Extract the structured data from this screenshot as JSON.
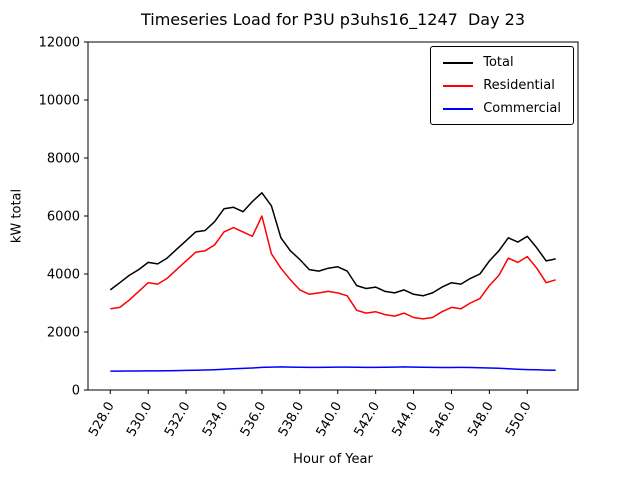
{
  "chart_data": {
    "type": "line",
    "title": "Timeseries Load for P3U p3uhs16_1247  Day 23",
    "xlabel": "Hour of Year",
    "ylabel": "kW total",
    "ylim": [
      0,
      12000
    ],
    "yticks": [
      0,
      2000,
      4000,
      6000,
      8000,
      10000,
      12000
    ],
    "xticks": [
      528,
      530,
      532,
      534,
      536,
      538,
      540,
      542,
      544,
      546,
      548,
      550
    ],
    "xtick_labels": [
      "528.0",
      "530.0",
      "532.0",
      "534.0",
      "536.0",
      "538.0",
      "540.0",
      "542.0",
      "544.0",
      "546.0",
      "548.0",
      "550.0"
    ],
    "grid": false,
    "legend_position": "upper right",
    "x": [
      528.0,
      528.5,
      529.0,
      529.5,
      530.0,
      530.5,
      531.0,
      531.5,
      532.0,
      532.5,
      533.0,
      533.5,
      534.0,
      534.5,
      535.0,
      535.5,
      536.0,
      536.5,
      537.0,
      537.5,
      538.0,
      538.5,
      539.0,
      539.5,
      540.0,
      540.5,
      541.0,
      541.5,
      542.0,
      542.5,
      543.0,
      543.5,
      544.0,
      544.5,
      545.0,
      545.5,
      546.0,
      546.5,
      547.0,
      547.5,
      548.0,
      548.5,
      549.0,
      549.5,
      550.0,
      550.5,
      551.0,
      551.5
    ],
    "series": [
      {
        "name": "Total",
        "color": "#000000",
        "values": [
          3450,
          3700,
          3950,
          4150,
          4400,
          4350,
          4550,
          4850,
          5150,
          5450,
          5500,
          5800,
          6250,
          6300,
          6150,
          6500,
          6800,
          6350,
          5250,
          4800,
          4500,
          4150,
          4100,
          4200,
          4250,
          4100,
          3600,
          3500,
          3550,
          3400,
          3350,
          3450,
          3300,
          3250,
          3350,
          3550,
          3700,
          3650,
          3850,
          4000,
          4450,
          4800,
          5250,
          5100,
          5300,
          4900,
          4450,
          4520
        ]
      },
      {
        "name": "Residential",
        "color": "#ff0000",
        "values": [
          2800,
          2850,
          3100,
          3400,
          3700,
          3650,
          3850,
          4150,
          4450,
          4750,
          4800,
          5000,
          5450,
          5600,
          5450,
          5300,
          6000,
          4700,
          4200,
          3800,
          3450,
          3300,
          3350,
          3400,
          3350,
          3250,
          2750,
          2650,
          2700,
          2600,
          2550,
          2650,
          2500,
          2450,
          2500,
          2700,
          2850,
          2800,
          3000,
          3150,
          3600,
          3950,
          4550,
          4400,
          4600,
          4200,
          3700,
          3800
        ]
      },
      {
        "name": "Commercial",
        "color": "#0000ff",
        "values": [
          650,
          650,
          655,
          655,
          660,
          660,
          665,
          670,
          675,
          680,
          690,
          700,
          715,
          730,
          745,
          760,
          780,
          790,
          795,
          790,
          785,
          780,
          780,
          785,
          790,
          790,
          785,
          780,
          780,
          785,
          790,
          795,
          790,
          785,
          780,
          775,
          775,
          780,
          775,
          770,
          760,
          750,
          730,
          715,
          705,
          695,
          685,
          680
        ]
      }
    ]
  }
}
